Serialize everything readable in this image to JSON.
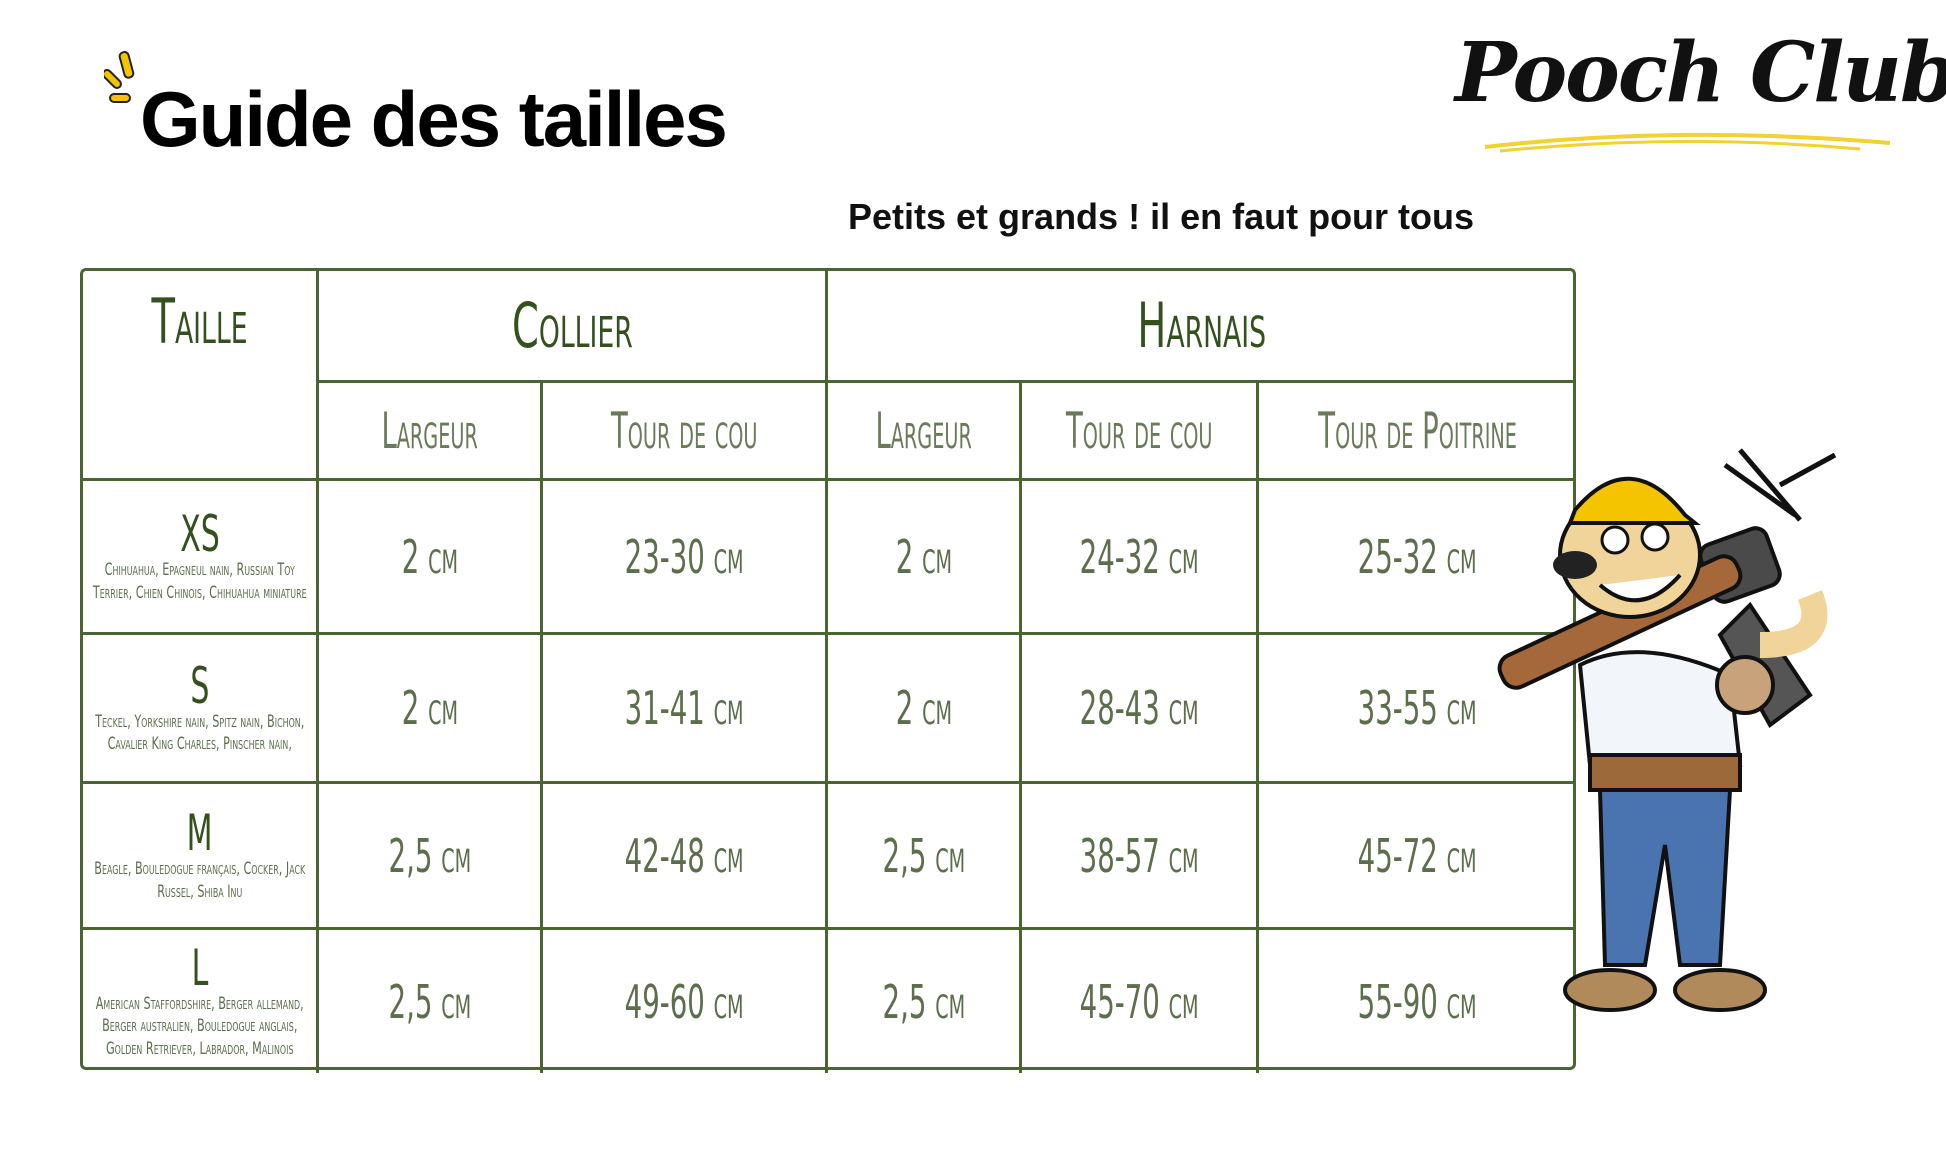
{
  "header": {
    "title": "Guide des tailles",
    "subtitle": "Petits et grands ! il en faut pour tous",
    "logo": "Pooch Club.",
    "accent_color": "#f5c400"
  },
  "table": {
    "border_color": "#4b6531",
    "headers": {
      "taille": "Taille",
      "collier": "Collier",
      "harnais": "Harnais",
      "collier_largeur": "Largeur",
      "collier_tour_de_cou": "Tour de cou",
      "harnais_largeur": "Largeur",
      "harnais_tour_de_cou": "Tour de cou",
      "harnais_tour_de_poitrine": "Tour de Poitrine"
    },
    "rows": [
      {
        "size": "XS",
        "breeds": "Chihuahua, Epagneul nain, Russian Toy Terrier, Chien Chinois, Chihuahua miniature",
        "collier_largeur": "2 cm",
        "collier_tour_de_cou": "23-30 cm",
        "harnais_largeur": "2 cm",
        "harnais_tour_de_cou": "24-32 cm",
        "harnais_tour_de_poitrine": "25-32 cm"
      },
      {
        "size": "S",
        "breeds": "Teckel, Yorkshire nain, Spitz nain, Bichon, Cavalier King Charles, Pinscher nain,",
        "collier_largeur": "2 cm",
        "collier_tour_de_cou": "31-41 cm",
        "harnais_largeur": "2 cm",
        "harnais_tour_de_cou": "28-43 cm",
        "harnais_tour_de_poitrine": "33-55 cm"
      },
      {
        "size": "M",
        "breeds": "Beagle, Bouledogue français, Cocker, Jack Russel, Shiba Inu",
        "collier_largeur": "2,5 cm",
        "collier_tour_de_cou": "42-48 cm",
        "harnais_largeur": "2,5 cm",
        "harnais_tour_de_cou": "38-57 cm",
        "harnais_tour_de_poitrine": "45-72 cm"
      },
      {
        "size": "L",
        "breeds": "American Staffordshire, Berger allemand, Berger australien, Bouledogue anglais, Golden Retriever, Labrador, Malinois",
        "collier_largeur": "2,5 cm",
        "collier_tour_de_cou": "49-60 cm",
        "harnais_largeur": "2,5 cm",
        "harnais_tour_de_cou": "45-70 cm",
        "harnais_tour_de_poitrine": "55-90 cm"
      }
    ]
  },
  "illustration": {
    "icon": "construction-dog-with-hammer-icon"
  }
}
